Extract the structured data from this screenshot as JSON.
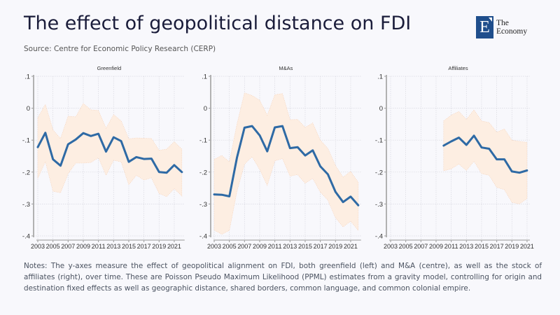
{
  "header": {
    "title": "The effect of geopolitical distance on FDI",
    "source": "Source: Centre for Economic Policy Research (CERP)"
  },
  "logo": {
    "mark": "E",
    "line1": "The",
    "line2": "Economy",
    "color": "#1f4e8c"
  },
  "notes": "Notes: The y-axes measure the effect of geopolitical alignment on FDI, both greenfield (left) and M&A (centre), as well as the stock of affiliates (right), over time. These are Poisson Pseudo Maximum Likelihood (PPML) estimates from a gravity model, controlling for origin and destination fixed effects as well as geographic distance, shared borders, common language, and common colonial empire.",
  "colors": {
    "line": "#2e6aa5",
    "band": "#fdeee2",
    "band_edge": "#f5c8a8"
  },
  "chart_data": [
    {
      "type": "line",
      "title": "Greenfield",
      "ylim": [
        -0.4,
        0.1
      ],
      "yticks": [
        0.1,
        0,
        -0.1,
        -0.2,
        -0.3,
        -0.4
      ],
      "ytick_labels": [
        ".1",
        "0",
        "-.1",
        "-.2",
        "-.3",
        "-.4"
      ],
      "xlim": [
        2003,
        2022
      ],
      "xticks": [
        2003,
        2005,
        2007,
        2009,
        2011,
        2013,
        2015,
        2017,
        2019,
        2021
      ],
      "grid": true,
      "x": [
        2003,
        2004,
        2005,
        2006,
        2007,
        2008,
        2009,
        2010,
        2011,
        2012,
        2013,
        2014,
        2015,
        2016,
        2017,
        2018,
        2019,
        2020,
        2021,
        2022
      ],
      "series": [
        {
          "name": "estimate",
          "values": [
            -0.122,
            -0.077,
            -0.16,
            -0.18,
            -0.113,
            -0.098,
            -0.078,
            -0.087,
            -0.08,
            -0.136,
            -0.091,
            -0.103,
            -0.168,
            -0.153,
            -0.159,
            -0.158,
            -0.2,
            -0.202,
            -0.178,
            -0.2
          ]
        },
        {
          "name": "upper",
          "values": [
            -0.03,
            0.012,
            -0.068,
            -0.095,
            -0.025,
            -0.027,
            0.015,
            -0.005,
            -0.007,
            -0.063,
            -0.02,
            -0.04,
            -0.096,
            -0.093,
            -0.094,
            -0.095,
            -0.132,
            -0.128,
            -0.105,
            -0.128
          ]
        },
        {
          "name": "lower",
          "values": [
            -0.22,
            -0.167,
            -0.26,
            -0.265,
            -0.205,
            -0.172,
            -0.172,
            -0.17,
            -0.155,
            -0.21,
            -0.163,
            -0.168,
            -0.24,
            -0.21,
            -0.225,
            -0.218,
            -0.267,
            -0.277,
            -0.252,
            -0.275
          ]
        }
      ]
    },
    {
      "type": "line",
      "title": "M&As",
      "ylim": [
        -0.4,
        0.1
      ],
      "yticks": [
        0.1,
        0,
        -0.1,
        -0.2,
        -0.3,
        -0.4
      ],
      "ytick_labels": [
        ".1",
        "0",
        "-.1",
        "-.2",
        "-.3",
        "-.4"
      ],
      "xlim": [
        2003,
        2022
      ],
      "xticks": [
        2003,
        2005,
        2007,
        2009,
        2011,
        2013,
        2015,
        2017,
        2019,
        2021
      ],
      "grid": true,
      "x": [
        2003,
        2004,
        2005,
        2006,
        2007,
        2008,
        2009,
        2010,
        2011,
        2012,
        2013,
        2014,
        2015,
        2016,
        2017,
        2018,
        2019,
        2020,
        2021,
        2022
      ],
      "series": [
        {
          "name": "estimate",
          "values": [
            -0.27,
            -0.271,
            -0.276,
            -0.155,
            -0.061,
            -0.056,
            -0.085,
            -0.135,
            -0.06,
            -0.056,
            -0.125,
            -0.122,
            -0.148,
            -0.132,
            -0.182,
            -0.207,
            -0.262,
            -0.294,
            -0.277,
            -0.304
          ]
        },
        {
          "name": "upper",
          "values": [
            -0.16,
            -0.148,
            -0.168,
            -0.05,
            0.048,
            0.04,
            0.025,
            -0.022,
            0.042,
            0.046,
            -0.036,
            -0.035,
            -0.06,
            -0.046,
            -0.1,
            -0.126,
            -0.18,
            -0.216,
            -0.198,
            -0.232
          ]
        },
        {
          "name": "lower",
          "values": [
            -0.382,
            -0.395,
            -0.383,
            -0.26,
            -0.175,
            -0.152,
            -0.192,
            -0.242,
            -0.165,
            -0.158,
            -0.213,
            -0.208,
            -0.235,
            -0.22,
            -0.263,
            -0.288,
            -0.343,
            -0.372,
            -0.354,
            -0.383
          ]
        }
      ]
    },
    {
      "type": "line",
      "title": "Affiliates",
      "ylim": [
        -0.4,
        0.1
      ],
      "yticks": [
        0.1,
        0,
        -0.1,
        -0.2,
        -0.3,
        -0.4
      ],
      "ytick_labels": [
        ".1",
        "0",
        "-.1",
        "-.2",
        "-.3",
        "-.4"
      ],
      "xlim": [
        2003,
        2021
      ],
      "xticks": [
        2003,
        2005,
        2007,
        2009,
        2011,
        2013,
        2015,
        2017,
        2019,
        2021
      ],
      "grid": true,
      "x": [
        2010,
        2011,
        2012,
        2013,
        2014,
        2015,
        2016,
        2017,
        2018,
        2019,
        2020,
        2021
      ],
      "series": [
        {
          "name": "estimate",
          "values": [
            -0.117,
            -0.104,
            -0.092,
            -0.115,
            -0.086,
            -0.123,
            -0.127,
            -0.16,
            -0.16,
            -0.198,
            -0.202,
            -0.195
          ]
        },
        {
          "name": "upper",
          "values": [
            -0.04,
            -0.022,
            -0.01,
            -0.035,
            -0.005,
            -0.04,
            -0.045,
            -0.075,
            -0.065,
            -0.1,
            -0.104,
            -0.107
          ]
        },
        {
          "name": "lower",
          "values": [
            -0.196,
            -0.19,
            -0.175,
            -0.195,
            -0.166,
            -0.205,
            -0.21,
            -0.248,
            -0.255,
            -0.295,
            -0.3,
            -0.283
          ]
        }
      ]
    }
  ]
}
